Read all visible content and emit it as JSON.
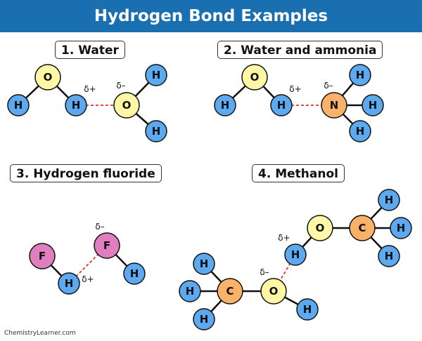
{
  "title": "Hydrogen Bond Examples",
  "footer": "ChemistryLearner.com",
  "colors": {
    "header": "#1a6fb0",
    "hydrogen": "#5da9f0",
    "oxygen": "#fdf7a6",
    "nitrogen": "#f8b26a",
    "fluorine": "#e07ec0",
    "carbon": "#f8b26a",
    "hbond": "#e0302c"
  },
  "sections": [
    {
      "label": "1. Water"
    },
    {
      "label": "2. Water and ammonia"
    },
    {
      "label": "3. Hydrogen fluoride"
    },
    {
      "label": "4. Methanol"
    }
  ],
  "charges": {
    "partial_positive": "δ+",
    "partial_negative": "δ–"
  },
  "elements": {
    "H": "H",
    "O": "O",
    "N": "N",
    "F": "F",
    "C": "C"
  }
}
